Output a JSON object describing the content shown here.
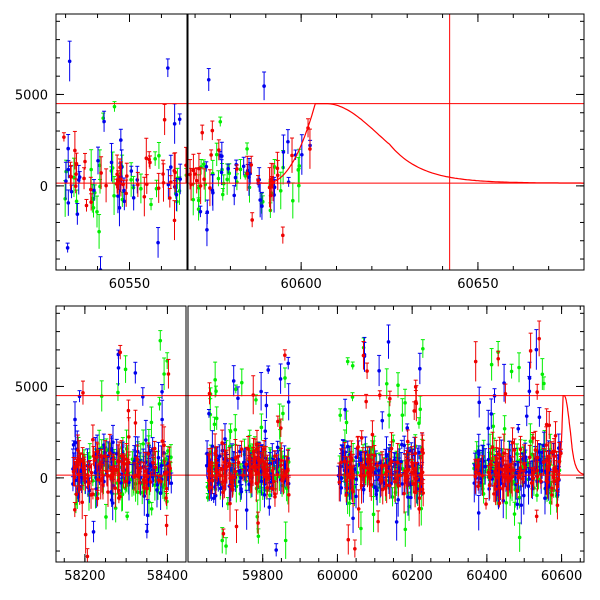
{
  "chart_data": [
    {
      "type": "scatter",
      "panel": "top",
      "title": "",
      "xlabel": "",
      "ylabel": "",
      "xlim": [
        60527,
        60680
      ],
      "ylim": [
        -4600,
        9400
      ],
      "x_ticks": [
        60550,
        60600,
        60650
      ],
      "x_tick_labels": [
        "60550",
        "60600",
        "60650"
      ],
      "y_ticks": [
        0,
        5000
      ],
      "y_tick_labels": [
        "0",
        "5000"
      ],
      "grid": false,
      "legend": "none",
      "series": [
        {
          "color": "#00ee00",
          "seed": 11,
          "segments": [
            [
              60528,
              60600,
              0.18
            ]
          ]
        },
        {
          "color": "#0000ee",
          "seed": 23,
          "segments": [
            [
              60528,
              60603,
              0.5
            ]
          ]
        },
        {
          "color": "#ee0000",
          "seed": 37,
          "segments": [
            [
              60528,
              60604,
              0.8
            ]
          ]
        }
      ],
      "model_curve": {
        "color": "#ff0000",
        "rise_start": 60590,
        "peak_x": 60604,
        "peak_y": 4500,
        "plateau_end": 60607,
        "baseline": 150,
        "decay_days": 15,
        "x_end": 60680
      },
      "hlines": [
        {
          "y": 4500,
          "color": "#ff0000"
        },
        {
          "y": 150,
          "color": "#ff0000"
        }
      ],
      "vlines": [
        {
          "x": 60642,
          "color": "#ff0000"
        }
      ],
      "season_edges": [
        60568
      ]
    },
    {
      "type": "scatter",
      "panel": "bottom",
      "title": "",
      "xlabel": "",
      "ylabel": "",
      "xlim": [
        58130,
        60660
      ],
      "ylim": [
        -4600,
        9400
      ],
      "x_ticks": [
        58200,
        58400,
        59800,
        60000,
        60200,
        60400,
        60600
      ],
      "x_tick_labels": [
        "58200",
        "58400",
        "59800",
        "60000",
        "60200",
        "60400",
        "60600"
      ],
      "y_ticks": [
        0,
        5000
      ],
      "y_tick_labels": [
        "0",
        "5000"
      ],
      "grid": false,
      "legend": "none",
      "series": [
        {
          "color": "#00ee00",
          "seed": 51,
          "segments": [
            [
              58170,
              58410,
              0.2
            ],
            [
              59650,
              59870,
              0.2
            ],
            [
              60000,
              60230,
              0.2
            ],
            [
              60365,
              60600,
              0.2
            ]
          ]
        },
        {
          "color": "#0000ee",
          "seed": 67,
          "segments": [
            [
              58170,
              58410,
              0.55
            ],
            [
              59650,
              59870,
              0.55
            ],
            [
              60000,
              60230,
              0.55
            ],
            [
              60365,
              60600,
              0.55
            ]
          ]
        },
        {
          "color": "#ee0000",
          "seed": 83,
          "segments": [
            [
              58170,
              58410,
              0.85
            ],
            [
              59650,
              59870,
              0.85
            ],
            [
              60000,
              60230,
              0.85
            ],
            [
              60365,
              60600,
              0.85
            ]
          ]
        }
      ],
      "model_curve": {
        "color": "#ff0000",
        "rise_start": 60590,
        "peak_x": 60604,
        "peak_y": 4500,
        "plateau_end": 60607,
        "baseline": 150,
        "decay_days": 15,
        "x_end": 60660
      },
      "hlines": [
        {
          "y": 4500,
          "color": "#ff0000"
        },
        {
          "y": 150,
          "color": "#ff0000"
        }
      ],
      "vlines": [],
      "axis_breaks": [
        {
          "from": 58445,
          "to": 59600
        },
        {
          "from": 59600,
          "to": 59650
        }
      ]
    }
  ]
}
